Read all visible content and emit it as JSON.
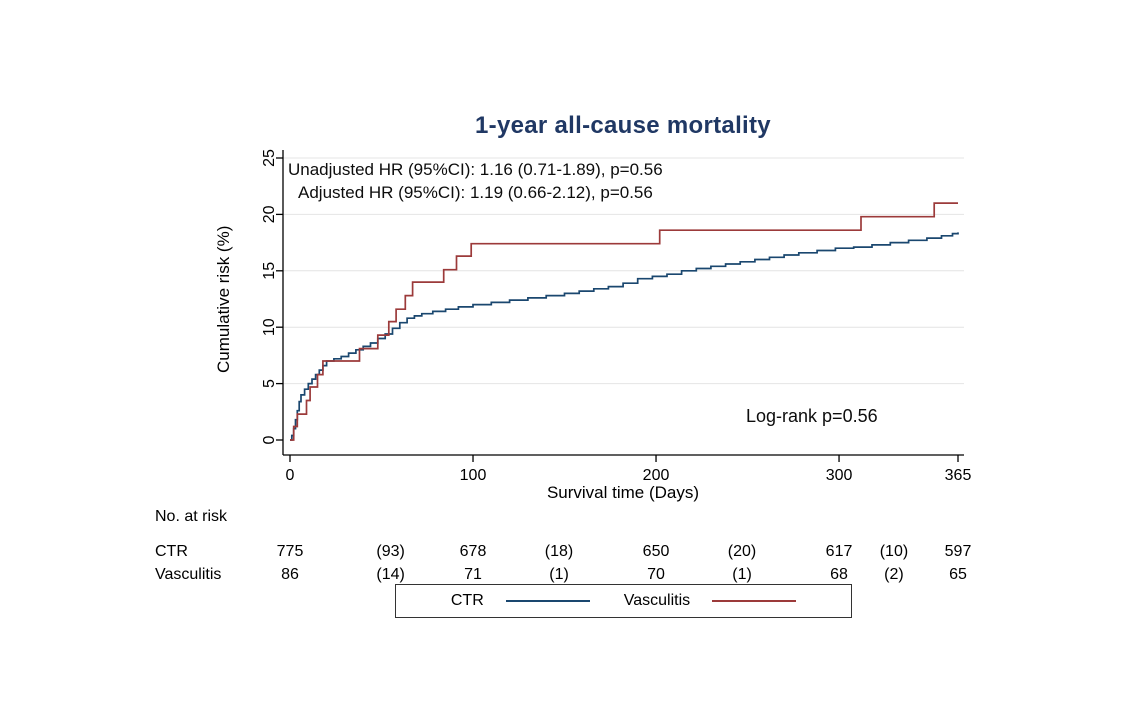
{
  "title": "1-year all-cause mortality",
  "annotations": {
    "unadjusted": "Unadjusted HR (95%CI): 1.16 (0.71-1.89), p=0.56",
    "adjusted": "Adjusted HR (95%CI): 1.19 (0.66-2.12), p=0.56",
    "logrank": "Log-rank p=0.56"
  },
  "chart_data": {
    "type": "line",
    "subtype": "step-cumulative-incidence",
    "title": "1-year all-cause mortality",
    "xlabel": "Survival time (Days)",
    "ylabel": "Cumulative risk (%)",
    "xlim": [
      0,
      365
    ],
    "ylim": [
      0,
      25
    ],
    "xticks": [
      0,
      100,
      200,
      300,
      365
    ],
    "yticks": [
      0,
      5,
      10,
      15,
      20,
      25
    ],
    "grid": "horizontal",
    "legend_position": "bottom",
    "series": [
      {
        "name": "CTR",
        "color": "#1a476f",
        "points": [
          [
            0,
            0
          ],
          [
            1,
            0.4
          ],
          [
            2,
            1.0
          ],
          [
            3,
            1.8
          ],
          [
            4,
            2.6
          ],
          [
            5,
            3.4
          ],
          [
            6,
            4.0
          ],
          [
            8,
            4.5
          ],
          [
            10,
            5.0
          ],
          [
            12,
            5.4
          ],
          [
            14,
            5.8
          ],
          [
            16,
            6.2
          ],
          [
            18,
            6.6
          ],
          [
            20,
            7.0
          ],
          [
            24,
            7.2
          ],
          [
            28,
            7.4
          ],
          [
            32,
            7.7
          ],
          [
            36,
            8.0
          ],
          [
            40,
            8.3
          ],
          [
            44,
            8.6
          ],
          [
            48,
            9.0
          ],
          [
            52,
            9.4
          ],
          [
            56,
            9.9
          ],
          [
            60,
            10.4
          ],
          [
            64,
            10.8
          ],
          [
            68,
            11.0
          ],
          [
            72,
            11.2
          ],
          [
            78,
            11.4
          ],
          [
            85,
            11.6
          ],
          [
            92,
            11.8
          ],
          [
            100,
            12.0
          ],
          [
            110,
            12.2
          ],
          [
            120,
            12.4
          ],
          [
            130,
            12.6
          ],
          [
            140,
            12.8
          ],
          [
            150,
            13.0
          ],
          [
            158,
            13.2
          ],
          [
            166,
            13.4
          ],
          [
            174,
            13.6
          ],
          [
            182,
            13.9
          ],
          [
            190,
            14.3
          ],
          [
            198,
            14.5
          ],
          [
            206,
            14.7
          ],
          [
            214,
            15.0
          ],
          [
            222,
            15.2
          ],
          [
            230,
            15.4
          ],
          [
            238,
            15.6
          ],
          [
            246,
            15.8
          ],
          [
            254,
            16.0
          ],
          [
            262,
            16.2
          ],
          [
            270,
            16.4
          ],
          [
            278,
            16.6
          ],
          [
            288,
            16.8
          ],
          [
            298,
            17.0
          ],
          [
            308,
            17.1
          ],
          [
            318,
            17.3
          ],
          [
            328,
            17.5
          ],
          [
            338,
            17.7
          ],
          [
            348,
            17.9
          ],
          [
            356,
            18.1
          ],
          [
            362,
            18.3
          ],
          [
            365,
            18.4
          ]
        ]
      },
      {
        "name": "Vasculitis",
        "color": "#9c3a3a",
        "points": [
          [
            0,
            0
          ],
          [
            2,
            1.2
          ],
          [
            4,
            2.3
          ],
          [
            9,
            3.5
          ],
          [
            11,
            4.7
          ],
          [
            15,
            5.8
          ],
          [
            18,
            7.0
          ],
          [
            38,
            8.1
          ],
          [
            48,
            9.3
          ],
          [
            54,
            10.5
          ],
          [
            58,
            11.6
          ],
          [
            63,
            12.8
          ],
          [
            67,
            14.0
          ],
          [
            84,
            15.1
          ],
          [
            91,
            16.3
          ],
          [
            99,
            17.4
          ],
          [
            202,
            18.6
          ],
          [
            312,
            19.8
          ],
          [
            352,
            21.0
          ],
          [
            365,
            21.0
          ]
        ]
      }
    ]
  },
  "risk_table": {
    "header": "No. at risk",
    "columns_days": [
      0,
      55,
      100,
      147,
      200,
      247,
      300,
      330,
      365
    ],
    "rows": [
      {
        "label": "CTR",
        "values": [
          "775",
          "(93)",
          "678",
          "(18)",
          "650",
          "(20)",
          "617",
          "(10)",
          "597"
        ]
      },
      {
        "label": "Vasculitis",
        "values": [
          "86",
          "(14)",
          "71",
          "(1)",
          "70",
          "(1)",
          "68",
          "(2)",
          "65"
        ]
      }
    ]
  },
  "legend": {
    "items": [
      {
        "label": "CTR",
        "color": "#1a476f"
      },
      {
        "label": "Vasculitis",
        "color": "#9c3a3a"
      }
    ]
  },
  "colors": {
    "title": "#203864",
    "axis": "#000000",
    "grid": "#e4e4e4",
    "background": "#ffffff",
    "ctr_line": "#1a476f",
    "vasculitis_line": "#9c3a3a"
  }
}
